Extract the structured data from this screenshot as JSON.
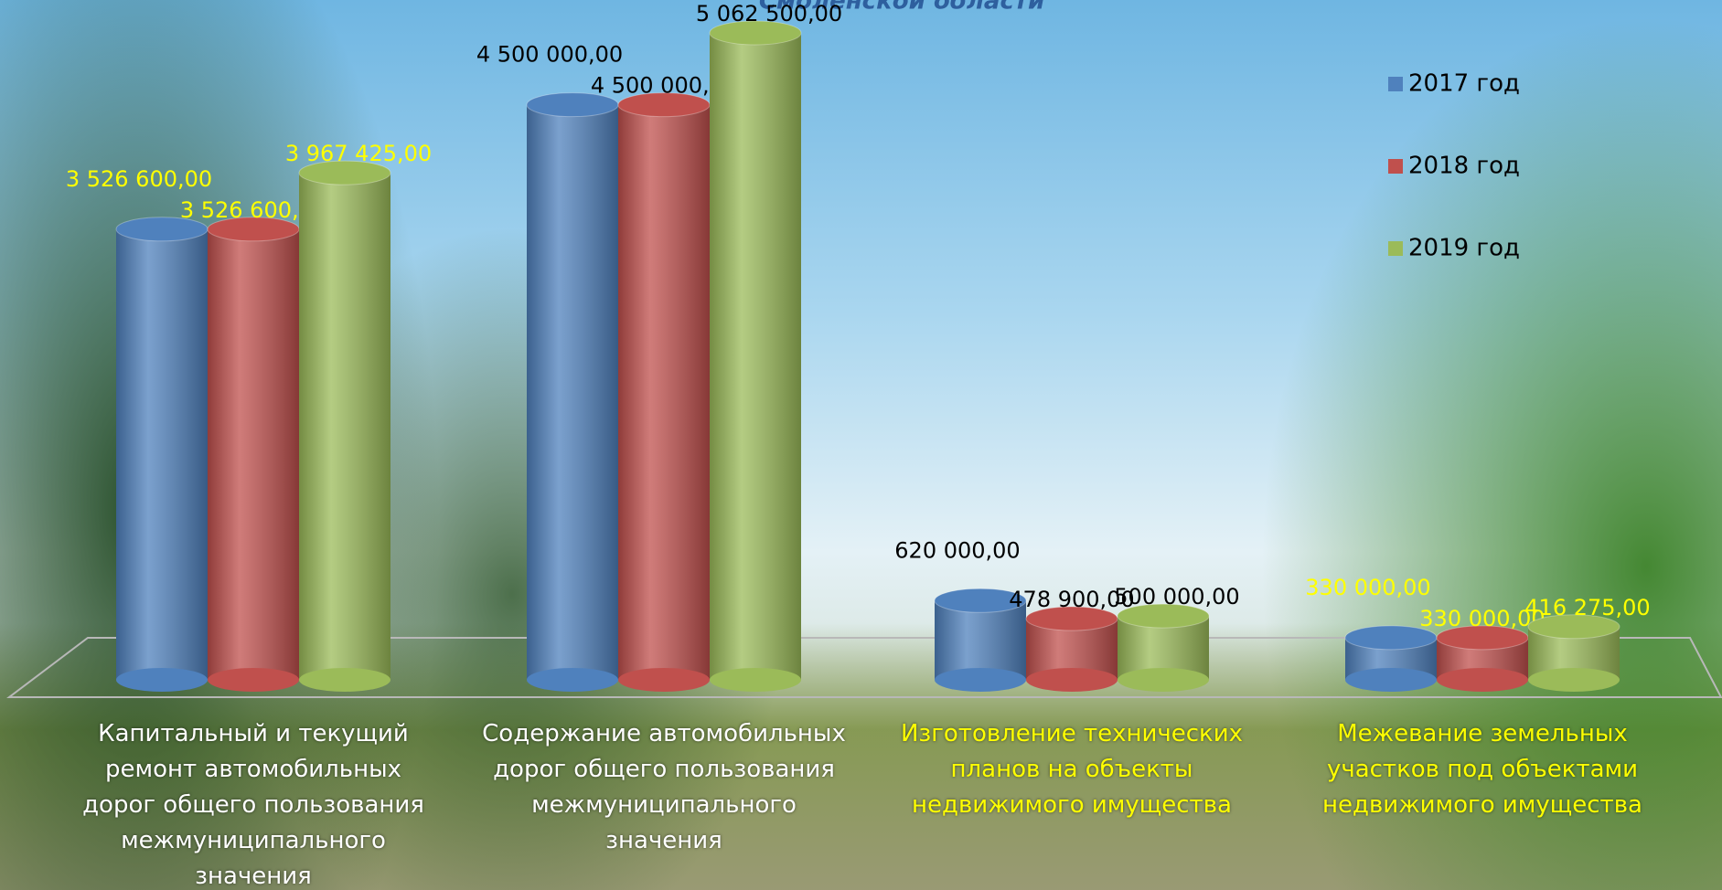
{
  "chart_data": {
    "type": "bar3d",
    "title": "Смоленской области",
    "categories": [
      "Капитальный и текущий ремонт автомобильных дорог общего пользования межмуниципального значения",
      "Содержание автомобильных дорог общего пользования межмуниципального значения",
      "Изготовление технических планов на объекты недвижимого имущества",
      "Межевание земельных участков под объектами недвижимого имущества"
    ],
    "series": [
      {
        "name": "2017 год",
        "color": "#4f81bd",
        "values": [
          3526600,
          4500000,
          620000,
          330000
        ],
        "value_labels": [
          "3 526 600,00",
          "4 500 000,00",
          "620 000,00",
          "330 000,00"
        ]
      },
      {
        "name": "2018 год",
        "color": "#c0504d",
        "values": [
          3526600,
          4500000,
          478900,
          330000
        ],
        "value_labels": [
          "3 526 600,00",
          "4 500 000,00",
          "478 900,00",
          "330 000,00"
        ]
      },
      {
        "name": "2019 год",
        "color": "#9bbb59",
        "values": [
          3967425,
          5062500,
          500000,
          416275
        ],
        "value_labels": [
          "3 967 425,00",
          "5 062 500,00",
          "500 000,00",
          "416 275,00"
        ]
      }
    ],
    "legend": "right"
  }
}
